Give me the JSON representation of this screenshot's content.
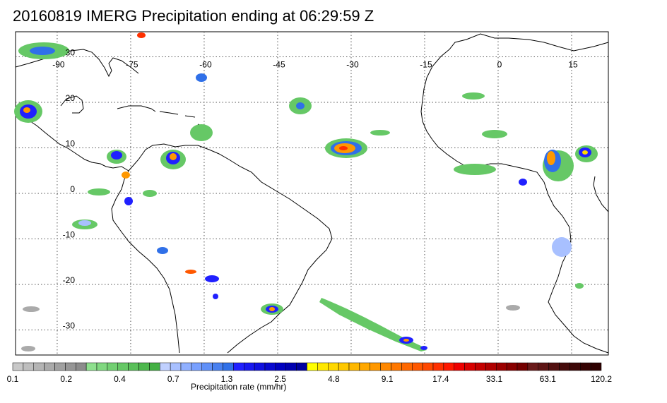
{
  "title": "20160819 IMERG Precipitation ending at 06:29:59 Z",
  "map": {
    "lat_labels": [
      "30",
      "20",
      "10",
      "0",
      "-10",
      "-20",
      "-30"
    ],
    "lon_labels": [
      "-90",
      "-75",
      "-60",
      "-45",
      "-30",
      "-15",
      "0",
      "15"
    ],
    "lat_values": [
      30,
      20,
      10,
      0,
      -10,
      -20,
      -30
    ],
    "lon_values": [
      -90,
      -75,
      -60,
      -45,
      -30,
      -15,
      0,
      15
    ]
  },
  "colorbar": {
    "title": "Precipitation rate (mm/hr)",
    "tick_labels": [
      "0.1",
      "0.2",
      "0.4",
      "0.7",
      "1.3",
      "2.5",
      "4.8",
      "9.1",
      "17.4",
      "33.1",
      "63.1",
      "120.2"
    ],
    "colors": [
      "#c8c8c8",
      "#bebebe",
      "#b4b4b4",
      "#aaaaaa",
      "#a0a0a0",
      "#969696",
      "#8c8c8c",
      "#8ee08e",
      "#80d880",
      "#72d072",
      "#66c866",
      "#5ac05a",
      "#4eb84e",
      "#44b044",
      "#c0d0ff",
      "#a8c0ff",
      "#90b0ff",
      "#78a0ff",
      "#6090f8",
      "#4880f0",
      "#3070e8",
      "#2020ff",
      "#1818f0",
      "#1010e0",
      "#0808d0",
      "#0000c0",
      "#0000b0",
      "#0000a0",
      "#ffff00",
      "#ffe800",
      "#ffd800",
      "#ffc800",
      "#ffb800",
      "#ffa800",
      "#ff9800",
      "#ff8800",
      "#ff7800",
      "#ff6800",
      "#ff5800",
      "#ff4800",
      "#ff3000",
      "#ff1800",
      "#ee0000",
      "#d80000",
      "#c40000",
      "#b00000",
      "#9c0000",
      "#880000",
      "#740000",
      "#6a1a1a",
      "#5e1515",
      "#521010",
      "#460c0c",
      "#3e0808",
      "#360404",
      "#2e0000"
    ]
  }
}
